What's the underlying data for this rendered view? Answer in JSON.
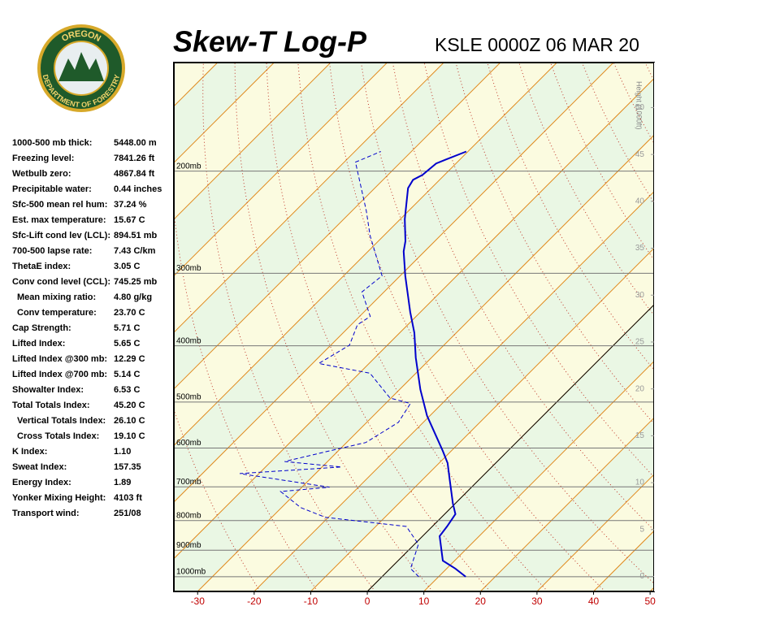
{
  "logo": {
    "top": "OREGON",
    "bottom": "DEPARTMENT OF FORESTRY"
  },
  "indices": [
    [
      "1000-500 mb thick:",
      "5448.00 m"
    ],
    [
      "Freezing level:",
      "7841.26 ft"
    ],
    [
      "Wetbulb zero:",
      "4867.84 ft"
    ],
    [
      "Precipitable water:",
      "0.44 inches"
    ],
    [
      "Sfc-500 mean rel hum:",
      "37.24 %"
    ],
    [
      "Est. max temperature:",
      "15.67 C"
    ],
    [
      "Sfc-Lift cond lev (LCL):",
      "894.51 mb"
    ],
    [
      "700-500 lapse rate:",
      "7.43 C/km"
    ],
    [
      "ThetaE index:",
      "3.05 C"
    ],
    [
      "Conv cond level (CCL):",
      "745.25 mb"
    ],
    [
      "Mean mixing ratio:",
      "4.80 g/kg"
    ],
    [
      "Conv temperature:",
      "23.70 C"
    ],
    [
      "Cap Strength:",
      "5.71 C"
    ],
    [
      "Lifted Index:",
      "5.65 C"
    ],
    [
      "Lifted Index @300 mb:",
      "12.29 C"
    ],
    [
      "Lifted Index @700 mb:",
      "5.14 C"
    ],
    [
      "Showalter Index:",
      "6.53 C"
    ],
    [
      "Total Totals Index:",
      "45.20 C"
    ],
    [
      "Vertical Totals Index:",
      "26.10 C"
    ],
    [
      "Cross Totals Index:",
      "19.10 C"
    ],
    [
      "K Index:",
      "1.10"
    ],
    [
      "Sweat Index:",
      "157.35"
    ],
    [
      "Energy Index:",
      "1.89"
    ],
    [
      "Yonker Mixing Height:",
      "4103 ft"
    ],
    [
      "Transport wind:",
      "251/08"
    ]
  ],
  "chart_data": {
    "type": "skewt",
    "title": "Skew-T Log-P",
    "subtitle": "KSLE 0000Z 06 MAR 20",
    "xlim": [
      -34.2,
      50.7
    ],
    "xticks": [
      -30,
      -20,
      -10,
      0,
      10,
      20,
      30,
      40,
      50
    ],
    "ylim": [
      1060,
      130
    ],
    "log_y": true,
    "yticks": [
      {
        "value": 200,
        "label": "200mb"
      },
      {
        "value": 300,
        "label": "300mb"
      },
      {
        "value": 400,
        "label": "400mb"
      },
      {
        "value": 500,
        "label": "500mb"
      },
      {
        "value": 600,
        "label": "600mb"
      },
      {
        "value": 700,
        "label": "700mb"
      },
      {
        "value": 800,
        "label": "800mb"
      },
      {
        "value": 900,
        "label": "900mb"
      },
      {
        "value": 1000,
        "label": "1000mb"
      }
    ],
    "y2label": "Height (1000ft)",
    "y2lim": [
      -1.6,
      54.8
    ],
    "y2ticks": [
      0,
      5,
      10,
      15,
      20,
      25,
      30,
      35,
      40,
      45,
      50
    ],
    "series": [
      {
        "name": "Temperature",
        "color": "#0000cc",
        "style": "solid",
        "pressure": [
          1000,
          968,
          938,
          851,
          819,
          780,
          748,
          679,
          637,
          607,
          574,
          528,
          476,
          419,
          380,
          350,
          303,
          275,
          264,
          242,
          214,
          207,
          203,
          194,
          191,
          185
        ],
        "values": [
          14.8,
          11.5,
          7.9,
          3.0,
          2.6,
          1.9,
          -0.4,
          -5.3,
          -8.5,
          -11.5,
          -15.1,
          -20.5,
          -26.3,
          -32.8,
          -37.4,
          -41.8,
          -49.1,
          -53.7,
          -55.2,
          -59.2,
          -64.1,
          -64.7,
          -63.9,
          -63.5,
          -62.5,
          -60.3
        ]
      },
      {
        "name": "Dewpoint",
        "color": "#0000cc",
        "style": "dashed",
        "pressure": [
          1000,
          968,
          879,
          819,
          790,
          760,
          713,
          701,
          664,
          647,
          633,
          607,
          587,
          542,
          503,
          492,
          446,
          429,
          399,
          368,
          356,
          323,
          303,
          258,
          234,
          193,
          185
        ],
        "values": [
          6.5,
          3.6,
          0.7,
          -4.6,
          -20.5,
          -26.6,
          -33.0,
          -25.1,
          -43.4,
          -26.6,
          -37.6,
          -31.6,
          -26.6,
          -24.4,
          -25.6,
          -30.2,
          -38.1,
          -48.9,
          -46.7,
          -48.9,
          -48.1,
          -53.9,
          -53.2,
          -62.5,
          -67.5,
          -78.0,
          -75.4
        ]
      }
    ]
  }
}
